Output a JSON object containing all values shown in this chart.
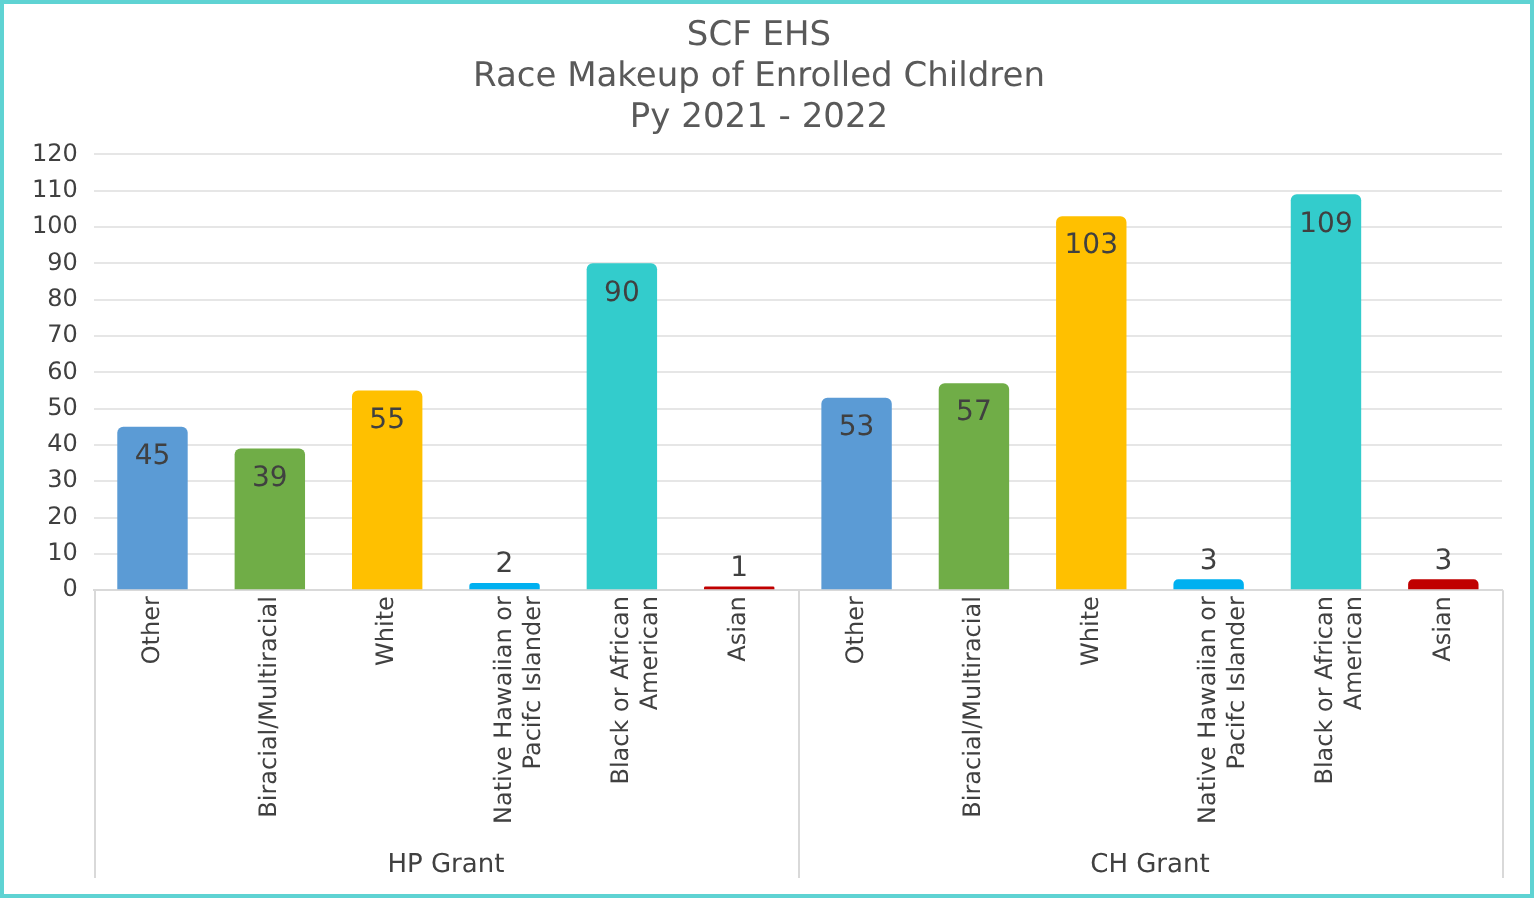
{
  "chart_data": {
    "type": "bar",
    "title": "SCF EHS\nRace Makeup of Enrolled Children\nPy 2021 - 2022",
    "categories": [
      "Other",
      "Biracial/Multiracial",
      "White",
      "Native Hawaiian or Pacifc Islander",
      "Black or African American",
      "Asian",
      "Other",
      "Biracial/Multiracial",
      "White",
      "Native Hawaiian or Pacifc Islander",
      "Black or African American",
      "Asian"
    ],
    "values": [
      45,
      39,
      55,
      2,
      90,
      1,
      53,
      57,
      103,
      3,
      109,
      3
    ],
    "colors": [
      "#5b9bd5",
      "#70ad47",
      "#ffc000",
      "#00b0f0",
      "#33cccc",
      "#c00000",
      "#5b9bd5",
      "#70ad47",
      "#ffc000",
      "#00b0f0",
      "#33cccc",
      "#c00000"
    ],
    "ylim": [
      0,
      120
    ],
    "yticks": [
      0,
      10,
      20,
      30,
      40,
      50,
      60,
      70,
      80,
      90,
      100,
      110,
      120
    ],
    "grid": "y",
    "legend": false,
    "data_labels": true,
    "annotations": [
      "HP Grant",
      "CH Grant"
    ]
  }
}
